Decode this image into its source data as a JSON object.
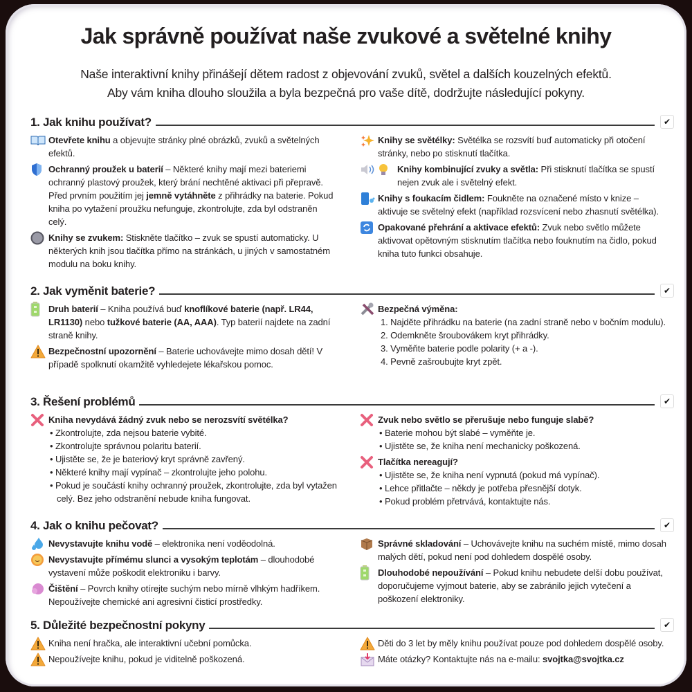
{
  "title": "Jak správně používat naše zvukové a světelné knihy",
  "subtitle": [
    "Naše interaktivní knihy přinášejí dětem radost z objevování zvuků, světel a dalších kouzelných efektů.",
    "Aby vám kniha dlouho sloužila a byla bezpečná pro vaše dítě, dodržujte následující pokyny."
  ],
  "colors": {
    "text": "#231f20",
    "warning": "#f3a93a",
    "cross": "#e8607d",
    "blue": "#3d7fd9",
    "background": "#1a0d0d"
  },
  "sections": [
    {
      "title": "1. Jak knihu používat?",
      "left": [
        {
          "icon": "open-book-icon",
          "segments": [
            {
              "t": "Otevřete knihu",
              "b": true
            },
            {
              "t": " a objevujte stránky plné obrázků, zvuků a světelných efektů."
            }
          ]
        },
        {
          "icon": "shield-icon",
          "segments": [
            {
              "t": "Ochranný proužek u baterií",
              "b": true
            },
            {
              "t": " – Některé knihy mají mezi bateriemi ochranný plastový proužek, který brání nechtěné aktivaci při přepravě. Před prvním použitím jej "
            },
            {
              "t": "jemně vytáhněte",
              "b": true
            },
            {
              "t": " z přihrádky na baterie. Pokud kniha po vytažení proužku nefunguje, zkontrolujte, zda byl odstraněn celý."
            }
          ]
        },
        {
          "icon": "round-button-icon",
          "segments": [
            {
              "t": "Knihy se zvukem:",
              "b": true
            },
            {
              "t": " Stiskněte tlačítko – zvuk se spustí automaticky. U některých knih jsou tlačítka přímo na stránkách, u jiných v samostatném modulu na boku knihy."
            }
          ]
        }
      ],
      "right": [
        {
          "icon": "sparkles-icon",
          "segments": [
            {
              "t": "Knihy se světélky:",
              "b": true
            },
            {
              "t": " Světélka se rozsvítí buď automaticky při otočení stránky, nebo po stisknutí tlačítka."
            }
          ]
        },
        {
          "icon": "speaker-bulb-icon",
          "segments": [
            {
              "t": "Knihy kombinující zvuky a světla:",
              "b": true
            },
            {
              "t": " Při stisknutí tlačítka se spustí nejen zvuk ale i světelný efekt."
            }
          ]
        },
        {
          "icon": "blow-sensor-icon",
          "segments": [
            {
              "t": "Knihy s foukacím čidlem:",
              "b": true
            },
            {
              "t": " Foukněte na označené místo v knize – aktivuje se světelný efekt (například rozsvícení nebo zhasnutí světélka)."
            }
          ]
        },
        {
          "icon": "repeat-icon",
          "segments": [
            {
              "t": "Opakované přehrání a aktivace efektů:",
              "b": true
            },
            {
              "t": " Zvuk nebo světlo můžete aktivovat opětovným stisknutím tlačítka nebo fouknutím na čidlo, pokud kniha tuto funkci obsahuje."
            }
          ]
        }
      ]
    },
    {
      "title": "2. Jak vyměnit baterie?",
      "left": [
        {
          "icon": "battery-icon",
          "segments": [
            {
              "t": "Druh baterií",
              "b": true
            },
            {
              "t": " – Kniha používá buď "
            },
            {
              "t": "knoflíkové baterie (např. LR44, LR1130)",
              "b": true
            },
            {
              "t": " nebo "
            },
            {
              "t": "tužkové baterie (AA, AAA)",
              "b": true
            },
            {
              "t": ". Typ baterií najdete na zadní straně knihy."
            }
          ]
        },
        {
          "icon": "warning-icon",
          "segments": [
            {
              "t": "Bezpečnostní upozornění",
              "b": true
            },
            {
              "t": " – Baterie uchovávejte mimo dosah dětí! V případě spolknutí okamžitě vyhledejete lékařskou pomoc."
            }
          ]
        }
      ],
      "right": [
        {
          "icon": "tools-icon",
          "segments": [
            {
              "t": "Bezpečná výměna:",
              "b": true
            }
          ],
          "list": {
            "type": "number",
            "items": [
              "1. Najděte přihrádku na baterie (na zadní straně nebo v bočním modulu).",
              "2. Odemkněte šroubovákem kryt přihrádky.",
              "3. Vyměňte baterie podle polarity (+ a -).",
              "4. Pevně zašroubujte kryt zpět."
            ]
          }
        }
      ]
    },
    {
      "title": "3. Řešení problémů",
      "left": [
        {
          "icon": "cross-icon",
          "segments": [
            {
              "t": "Kniha nevydává žádný zvuk nebo se nerozsvítí světélka?",
              "b": true
            }
          ],
          "list": {
            "type": "bullet",
            "items": [
              "• Zkontrolujte, zda nejsou baterie vybité.",
              "• Zkontrolujte správnou polaritu baterií.",
              "• Ujistěte se, že je bateriový kryt správně zavřený.",
              "• Některé knihy mají vypínač – zkontrolujte jeho polohu.",
              "• Pokud je součástí knihy ochranný proužek, zkontrolujte, zda byl vytažen celý. Bez jeho odstranění nebude kniha fungovat."
            ]
          }
        }
      ],
      "right": [
        {
          "icon": "cross-icon",
          "segments": [
            {
              "t": "Zvuk nebo světlo se přerušuje nebo funguje slabě?",
              "b": true
            }
          ],
          "list": {
            "type": "bullet",
            "items": [
              "• Baterie mohou být slabé – vyměňte je.",
              "• Ujistěte se, že kniha není mechanicky poškozená."
            ]
          }
        },
        {
          "icon": "cross-icon",
          "segments": [
            {
              "t": "Tlačítka nereagují?",
              "b": true
            }
          ],
          "list": {
            "type": "bullet",
            "items": [
              "• Ujistěte se, že kniha není vypnutá (pokud má vypínač).",
              "• Lehce přitlačte – někdy je potřeba přesnější dotyk.",
              "• Pokud problém přetrvává, kontaktujte nás."
            ]
          }
        }
      ]
    },
    {
      "title": "4. Jak o knihu pečovat?",
      "left": [
        {
          "icon": "water-drops-icon",
          "segments": [
            {
              "t": "Nevystavujte knihu vodě",
              "b": true
            },
            {
              "t": " – elektronika není voděodolná."
            }
          ]
        },
        {
          "icon": "sun-icon",
          "segments": [
            {
              "t": "Nevystavujte přímému slunci a vysokým teplotám",
              "b": true
            },
            {
              "t": " – dlouhodobé vystavení může poškodit elektroniku i barvy."
            }
          ]
        },
        {
          "icon": "cleaning-sponge-icon",
          "segments": [
            {
              "t": "Čištění",
              "b": true
            },
            {
              "t": " – Povrch knihy otírejte suchým nebo mírně vlhkým hadříkem. Nepoužívejte chemické ani agresivní čisticí prostředky."
            }
          ]
        }
      ],
      "right": [
        {
          "icon": "box-icon",
          "segments": [
            {
              "t": "Správné skladování",
              "b": true
            },
            {
              "t": " – Uchovávejte knihu na suchém místě, mimo dosah malých dětí, pokud není pod dohledem dospělé osoby."
            }
          ]
        },
        {
          "icon": "battery-icon",
          "segments": [
            {
              "t": "Dlouhodobé nepoužívání",
              "b": true
            },
            {
              "t": " – Pokud knihu nebudete delší dobu používat, doporučujeme vyjmout baterie, aby se zabránilo jejich vytečení a poškození elektroniky."
            }
          ]
        }
      ]
    },
    {
      "title": "5. Důležité bezpečnostní pokyny",
      "left": [
        {
          "icon": "warning-icon",
          "segments": [
            {
              "t": "Kniha není hračka, ale interaktivní učební pomůcka."
            }
          ]
        },
        {
          "icon": "warning-icon",
          "segments": [
            {
              "t": "Nepoužívejte knihu, pokud je viditelně poškozená."
            }
          ]
        }
      ],
      "right": [
        {
          "icon": "warning-icon",
          "segments": [
            {
              "t": "Děti do 3 let by měly knihu používat pouze pod dohledem dospělé osoby."
            }
          ]
        },
        {
          "icon": "mail-icon",
          "segments": [
            {
              "t": "Máte otázky? Kontaktujte nás na e-mailu: "
            },
            {
              "t": "svojtka@svojtka.cz",
              "b": true
            }
          ]
        }
      ]
    }
  ]
}
